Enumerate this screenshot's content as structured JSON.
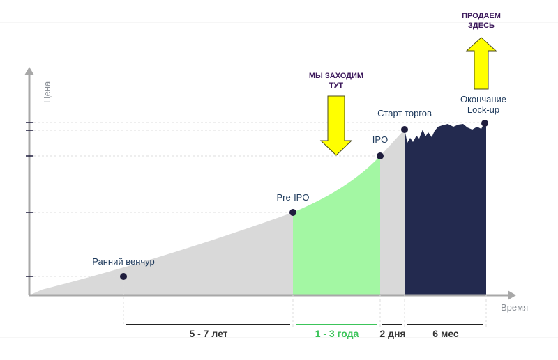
{
  "axes": {
    "y_label": "Цена",
    "x_label": "Время"
  },
  "stages": {
    "early_venture": "Ранний венчур",
    "pre_ipo": "Pre-IPO",
    "ipo": "IPO",
    "trading_start": "Старт торгов",
    "lockup_end_line1": "Окончание",
    "lockup_end_line2": "Lock-up"
  },
  "durations": {
    "venture_to_preipo": "5 - 7 лет",
    "preipo_to_ipo": "1 - 3 года",
    "ipo_to_trading": "2 дня",
    "lockup": "6 мес"
  },
  "annotations": {
    "enter_line1": "МЫ ЗАХОДИМ",
    "enter_line2": "ТУТ",
    "sell_line1": "ПРОДАЕМ",
    "sell_line2": "ЗДЕСЬ"
  },
  "colors": {
    "grey_area": "#d9d9d9",
    "green_area": "#a3f7a3",
    "navy_area": "#232a4f",
    "arrow_yellow": "#ffff00",
    "axis": "#a8a8a8",
    "dot": "#1f1d3d"
  }
}
